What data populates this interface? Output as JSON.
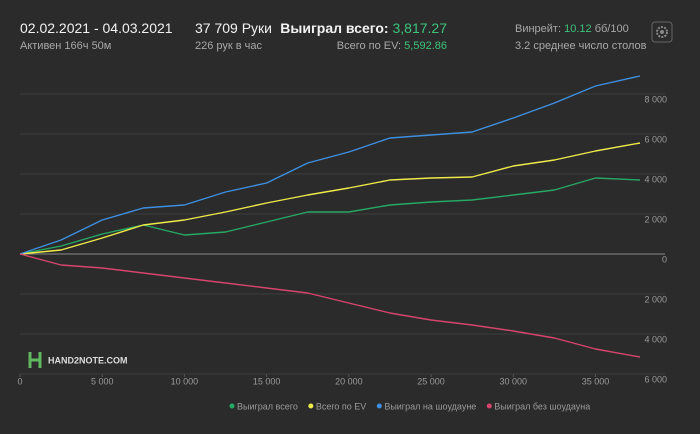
{
  "header": {
    "date_range": "02.02.2021 - 04.03.2021",
    "active": "Активен 166ч 50м",
    "hands": "37 709 Руки",
    "hands_per_hour": "226 рук в час",
    "won_label": "Выиграл всего:",
    "won_value": "3,817.27",
    "ev_label": "Всего по EV:",
    "ev_value": "5,592.86",
    "winrate_label": "Винрейт:",
    "winrate_value": "10.12",
    "winrate_unit": "бб/100",
    "tables": "3.2 среднее число столов",
    "logo": "HAND2NOTE.COM"
  },
  "chart_data": {
    "type": "line",
    "x": [
      0,
      2500,
      5000,
      7500,
      10000,
      12500,
      15000,
      17500,
      20000,
      22500,
      25000,
      27500,
      30000,
      32500,
      35000,
      37709
    ],
    "series": [
      {
        "name": "Выиграл всего",
        "color": "#27a865",
        "values": [
          0,
          400,
          1000,
          1450,
          950,
          1100,
          1600,
          2100,
          2100,
          2450,
          2600,
          2700,
          2950,
          3200,
          3800,
          3700
        ]
      },
      {
        "name": "Всего по EV",
        "color": "#eeea4a",
        "values": [
          0,
          200,
          800,
          1450,
          1700,
          2100,
          2550,
          2950,
          3300,
          3700,
          3800,
          3850,
          4400,
          4700,
          5150,
          5550
        ]
      },
      {
        "name": "Выиграл на шоудауне",
        "color": "#3d8fe0",
        "values": [
          0,
          700,
          1700,
          2300,
          2450,
          3100,
          3550,
          4550,
          5100,
          5800,
          5950,
          6100,
          6800,
          7550,
          8400,
          8900
        ]
      },
      {
        "name": "Выиграл без шоудауна",
        "color": "#d6456e",
        "values": [
          0,
          -550,
          -700,
          -950,
          -1200,
          -1450,
          -1700,
          -1950,
          -2450,
          -2950,
          -3300,
          -3550,
          -3850,
          -4200,
          -4750,
          -5150
        ]
      }
    ],
    "xlim": [
      0,
      37709
    ],
    "xticks": [
      0,
      {
        "value": 5000,
        "label": "5 000"
      },
      {
        "value": 10000,
        "label": "10 000"
      },
      {
        "value": 15000,
        "label": "15 000"
      },
      {
        "value": 20000,
        "label": "20 000"
      },
      {
        "value": 25000,
        "label": "25 000"
      },
      {
        "value": 30000,
        "label": "30 000"
      },
      {
        "value": 35000,
        "label": "35 000"
      }
    ],
    "ylim": [
      -6000,
      9600
    ],
    "yticks": [
      {
        "value": 8000,
        "label": "8 000"
      },
      {
        "value": 6000,
        "label": "6 000"
      },
      {
        "value": 4000,
        "label": "4 000"
      },
      {
        "value": 2000,
        "label": "2 000"
      },
      0,
      {
        "value": -2000,
        "label": "2 000"
      },
      {
        "value": -4000,
        "label": "4 000"
      },
      {
        "value": -6000,
        "label": "6 000"
      }
    ],
    "grid": true
  }
}
